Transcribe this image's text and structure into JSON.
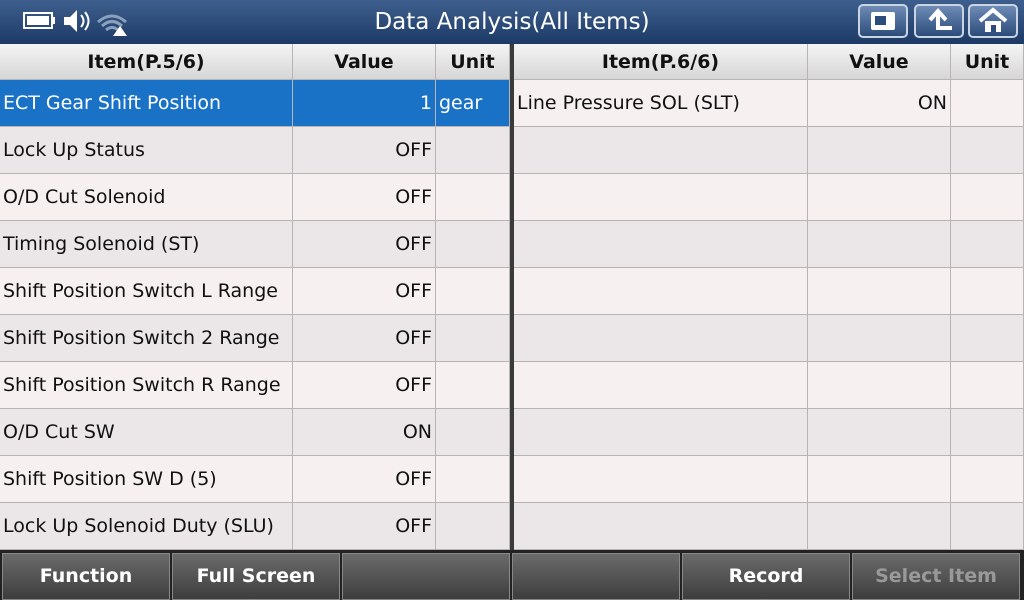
{
  "header": {
    "title": "Data Analysis(All Items)"
  },
  "left_table": {
    "columns": [
      "Item(P.5/6)",
      "Value",
      "Unit"
    ],
    "rows": [
      {
        "item": "ECT Gear Shift Position",
        "value": 1,
        "unit": "gear"
      },
      {
        "item": "Lock Up Status",
        "value": "OFF"
      },
      {
        "item": "O/D Cut Solenoid",
        "value": "OFF"
      },
      {
        "item": "Timing Solenoid (ST)",
        "value": "OFF"
      },
      {
        "item": "Shift Position Switch L Range",
        "value": "OFF"
      },
      {
        "item": "Shift Position Switch 2 Range",
        "value": "OFF"
      },
      {
        "item": "Shift Position Switch R Range",
        "value": "OFF"
      },
      {
        "item": "O/D Cut SW",
        "value": "ON"
      },
      {
        "item": "Shift Position SW D (5)",
        "value": "OFF"
      },
      {
        "item": "Lock Up Solenoid Duty (SLU)",
        "value": "OFF"
      }
    ]
  },
  "right_table": {
    "columns": [
      "Item(P.6/6)",
      "Value",
      "Unit"
    ],
    "rows": [
      {
        "item": "Line Pressure SOL (SLT)",
        "value": "ON"
      }
    ]
  },
  "footer": {
    "buttons": [
      "Function",
      "Full Screen",
      "Record",
      "Select Item"
    ]
  }
}
